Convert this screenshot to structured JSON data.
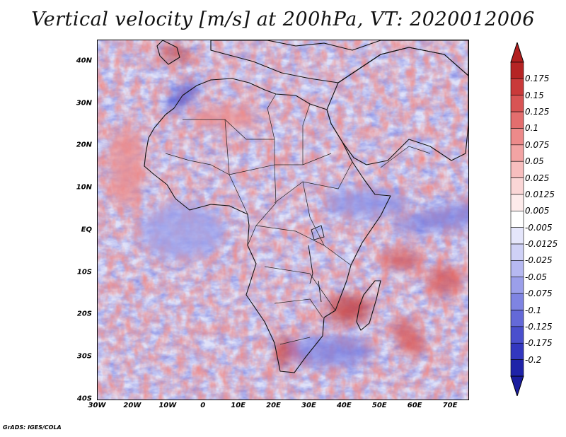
{
  "title": "Vertical velocity [m/s] at 200hPa, VT: 2020012006",
  "footer": "GrADS: IGES/COLA",
  "axes": {
    "lat_labels": [
      "40N",
      "30N",
      "20N",
      "10N",
      "EQ",
      "10S",
      "20S",
      "30S",
      "40S"
    ],
    "lat_values": [
      40,
      30,
      20,
      10,
      0,
      -10,
      -20,
      -30,
      -40
    ],
    "lon_labels": [
      "30W",
      "20W",
      "10W",
      "0",
      "10E",
      "20E",
      "30E",
      "40E",
      "50E",
      "60E",
      "70E"
    ],
    "lon_values": [
      -30,
      -20,
      -10,
      0,
      10,
      20,
      30,
      40,
      50,
      60,
      70
    ],
    "lon_range": [
      -30,
      75
    ],
    "lat_range": [
      -40,
      45
    ]
  },
  "colorbar": {
    "labels": [
      "0.175",
      "0.15",
      "0.125",
      "0.1",
      "0.075",
      "0.05",
      "0.025",
      "0.0125",
      "0.005",
      "-0.005",
      "-0.0125",
      "-0.025",
      "-0.05",
      "-0.075",
      "-0.1",
      "-0.125",
      "-0.175",
      "-0.2"
    ],
    "colors": [
      "#b52424",
      "#c93a3a",
      "#d85454",
      "#e36e6e",
      "#ec8a8a",
      "#f2a4a4",
      "#f7bebe",
      "#fad6d6",
      "#fdebeb",
      "#ffffff",
      "#e5e6fb",
      "#cfd1f6",
      "#b6b9f1",
      "#9b9fea",
      "#7f84e2",
      "#6469d8",
      "#4a4fcd",
      "#3337bf",
      "#1f23a8"
    ],
    "top_color": "#b21f1f",
    "bottom_color": "#1a1d9e"
  }
}
